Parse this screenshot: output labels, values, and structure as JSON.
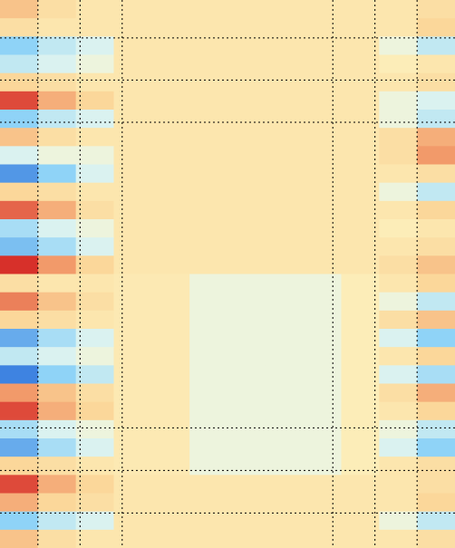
{
  "chart_data": {
    "type": "heatmap",
    "xlim": [
      0,
      10.8
    ],
    "ylim": [
      0,
      13.0
    ],
    "xticks": [
      0.9,
      1.9,
      2.9,
      7.9,
      8.9,
      9.9
    ],
    "yticks": [
      0.9,
      1.9,
      2.9,
      10.15,
      11.16,
      12.17
    ],
    "grid": true,
    "colorscale": [
      [
        -1,
        "#2a6fdb"
      ],
      [
        -0.5,
        "#8fd3f7"
      ],
      [
        -0.15,
        "#e6f7ef"
      ],
      [
        0,
        "#fcedb8"
      ],
      [
        0.3,
        "#fbd79a"
      ],
      [
        0.6,
        "#f29a6a"
      ],
      [
        1,
        "#d7302a"
      ]
    ],
    "z": [
      [
        0.4,
        0.2,
        0.1,
        0.1,
        0.1,
        0.1,
        0.1,
        0.1,
        0.1,
        0.1,
        0.1,
        0.2
      ],
      [
        0.2,
        0.1,
        0.1,
        0.1,
        0.1,
        0.1,
        0.1,
        0.1,
        0.1,
        0.1,
        0.1,
        0.3
      ],
      [
        -0.5,
        -0.3,
        -0.2,
        0.1,
        0.1,
        0.1,
        0.1,
        0.1,
        0.1,
        0.1,
        -0.1,
        -0.3
      ],
      [
        -0.3,
        -0.2,
        -0.1,
        0.1,
        0.1,
        0.1,
        0.1,
        0.1,
        0.1,
        0.1,
        0.0,
        0.1
      ],
      [
        0.3,
        0.2,
        0.1,
        0.1,
        0.1,
        0.1,
        0.1,
        0.1,
        0.1,
        0.1,
        0.1,
        0.2
      ],
      [
        0.9,
        0.5,
        0.3,
        0.1,
        0.1,
        0.1,
        0.1,
        0.1,
        0.1,
        0.1,
        -0.1,
        -0.2
      ],
      [
        -0.5,
        -0.3,
        -0.2,
        0.1,
        0.1,
        0.1,
        0.1,
        0.1,
        0.1,
        0.1,
        -0.1,
        -0.3
      ],
      [
        0.4,
        0.2,
        0.1,
        0.1,
        0.1,
        0.1,
        0.1,
        0.1,
        0.1,
        0.1,
        0.2,
        0.5
      ],
      [
        -0.2,
        -0.1,
        -0.1,
        0.1,
        0.1,
        0.1,
        0.1,
        0.1,
        0.1,
        0.1,
        0.2,
        0.6
      ],
      [
        -0.8,
        -0.5,
        -0.2,
        0.1,
        0.1,
        0.1,
        0.1,
        0.1,
        0.1,
        0.1,
        0.1,
        0.2
      ],
      [
        0.3,
        0.2,
        0.1,
        0.1,
        0.1,
        0.1,
        0.1,
        0.1,
        0.1,
        0.1,
        -0.1,
        -0.3
      ],
      [
        0.8,
        0.5,
        0.2,
        0.1,
        0.1,
        0.1,
        0.1,
        0.1,
        0.1,
        0.1,
        0.1,
        0.3
      ],
      [
        -0.4,
        -0.2,
        -0.1,
        0.1,
        0.1,
        0.1,
        0.1,
        0.1,
        0.1,
        0.1,
        0.0,
        0.1
      ],
      [
        -0.6,
        -0.4,
        -0.2,
        0.1,
        0.1,
        0.1,
        0.1,
        0.1,
        0.1,
        0.1,
        0.1,
        0.2
      ],
      [
        1.0,
        0.6,
        0.3,
        0.1,
        0.1,
        0.1,
        0.1,
        0.1,
        0.1,
        0.1,
        0.2,
        0.4
      ],
      [
        0.2,
        0.1,
        0.1,
        0.05,
        0.05,
        -0.1,
        -0.1,
        -0.1,
        -0.1,
        0.0,
        0.1,
        0.3
      ],
      [
        0.7,
        0.4,
        0.2,
        0.05,
        0.05,
        -0.1,
        -0.1,
        -0.1,
        -0.1,
        0.0,
        -0.1,
        -0.3
      ],
      [
        0.3,
        0.2,
        0.1,
        0.05,
        0.05,
        -0.1,
        -0.1,
        -0.1,
        -0.1,
        0.0,
        0.2,
        0.4
      ],
      [
        -0.7,
        -0.4,
        -0.2,
        0.05,
        0.05,
        -0.1,
        -0.1,
        -0.1,
        -0.1,
        0.0,
        -0.2,
        -0.5
      ],
      [
        -0.3,
        -0.2,
        -0.1,
        0.05,
        0.05,
        -0.1,
        -0.1,
        -0.1,
        -0.1,
        0.0,
        0.1,
        0.3
      ],
      [
        -0.9,
        -0.5,
        -0.3,
        0.05,
        0.05,
        -0.1,
        -0.1,
        -0.1,
        -0.1,
        0.0,
        -0.2,
        -0.4
      ],
      [
        0.6,
        0.4,
        0.2,
        0.05,
        0.05,
        -0.1,
        -0.1,
        -0.1,
        -0.1,
        0.0,
        0.2,
        0.5
      ],
      [
        0.9,
        0.5,
        0.3,
        0.05,
        0.05,
        -0.1,
        -0.1,
        -0.1,
        -0.1,
        0.0,
        0.1,
        0.3
      ],
      [
        -0.4,
        -0.2,
        -0.1,
        0.05,
        0.05,
        -0.1,
        -0.1,
        -0.1,
        -0.1,
        0.0,
        -0.1,
        -0.3
      ],
      [
        -0.7,
        -0.4,
        -0.2,
        0.05,
        0.05,
        -0.1,
        -0.1,
        -0.1,
        -0.1,
        0.0,
        -0.2,
        -0.5
      ],
      [
        0.3,
        0.2,
        0.1,
        0.05,
        0.05,
        -0.1,
        -0.1,
        -0.1,
        -0.1,
        0.0,
        0.1,
        0.2
      ],
      [
        0.9,
        0.5,
        0.3,
        0.1,
        0.1,
        0.1,
        0.1,
        0.1,
        0.1,
        0.1,
        0.1,
        0.2
      ],
      [
        0.5,
        0.3,
        0.2,
        0.1,
        0.1,
        0.1,
        0.1,
        0.1,
        0.1,
        0.1,
        0.1,
        0.3
      ],
      [
        -0.5,
        -0.3,
        -0.2,
        0.1,
        0.1,
        0.1,
        0.1,
        0.1,
        0.1,
        0.1,
        -0.1,
        -0.3
      ],
      [
        0.4,
        0.2,
        0.1,
        0.1,
        0.1,
        0.1,
        0.1,
        0.1,
        0.1,
        0.1,
        0.1,
        0.2
      ]
    ]
  }
}
